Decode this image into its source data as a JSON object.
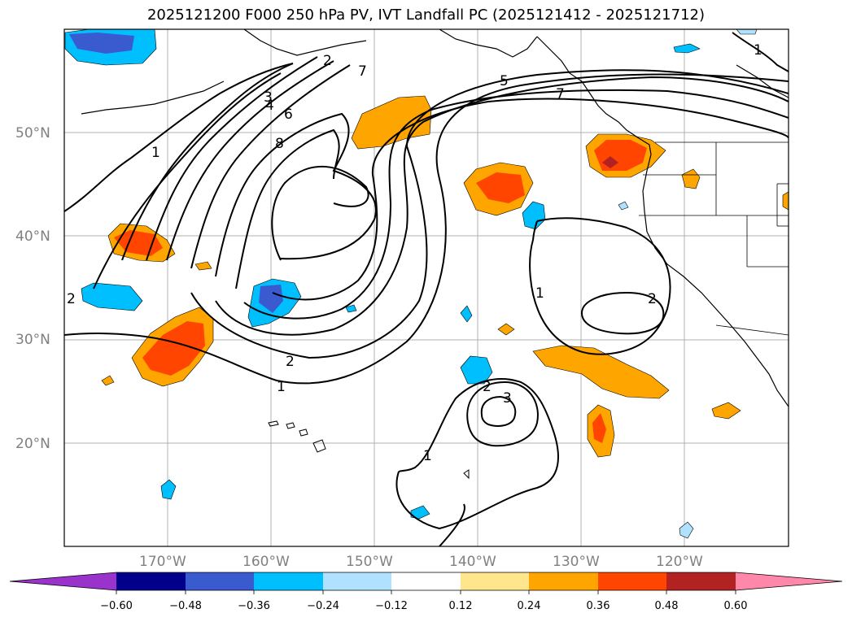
{
  "title": "2025121200 F000 250 hPa PV, IVT Landfall PC (2025121412 - 2025121712)",
  "map": {
    "lat_labels": [
      "50°N",
      "40°N",
      "30°N",
      "20°N"
    ],
    "lon_labels": [
      "170°W",
      "160°W",
      "150°W",
      "140°W",
      "130°W",
      "120°W"
    ],
    "pv_contour_labels": [
      "1",
      "2",
      "3",
      "4",
      "5",
      "6",
      "7",
      "8",
      "1",
      "2",
      "1",
      "2",
      "3",
      "1",
      "1",
      "2",
      "7",
      "2"
    ]
  },
  "colorbar": {
    "tick_labels": [
      "−0.60",
      "−0.48",
      "−0.36",
      "−0.24",
      "−0.12",
      "0.12",
      "0.24",
      "0.36",
      "0.48",
      "0.60"
    ],
    "colors": [
      "#9933cc",
      "#00008b",
      "#3a5bd0",
      "#00bfff",
      "#b0e2ff",
      "#ffffff",
      "#ffe68c",
      "#ffa500",
      "#ff4500",
      "#b22222",
      "#ff88aa"
    ]
  }
}
